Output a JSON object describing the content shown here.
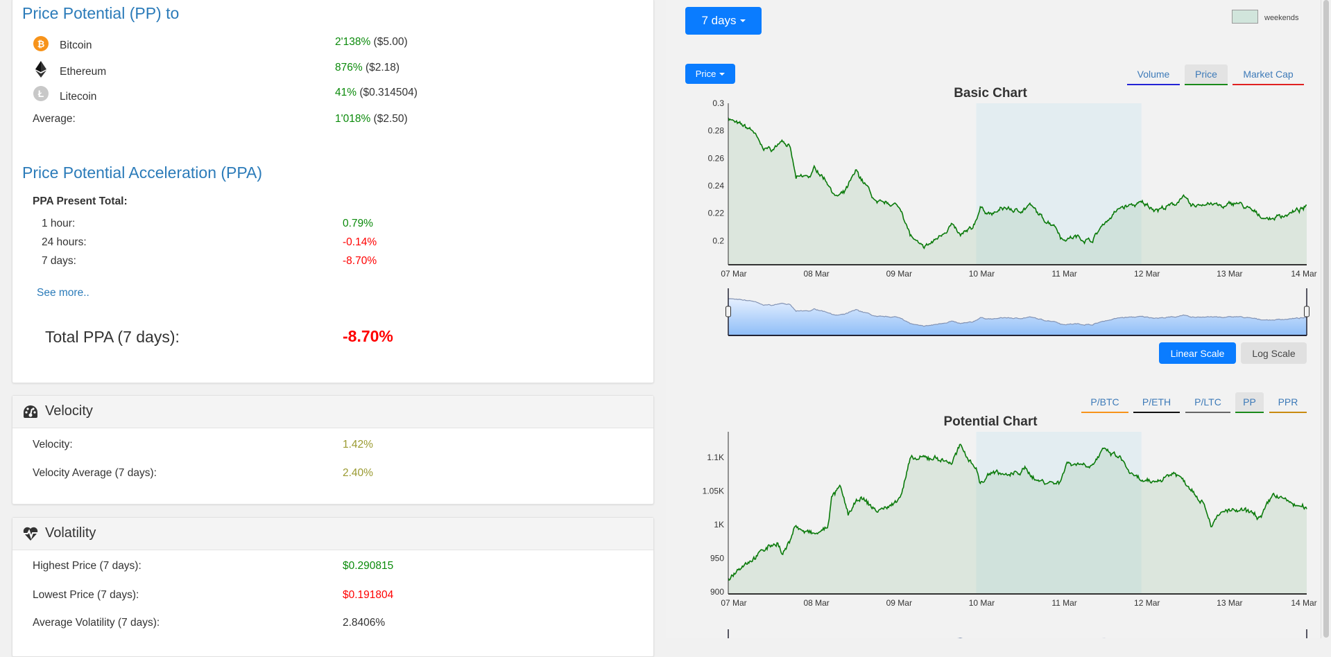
{
  "pp": {
    "title": "Price Potential (PP) to",
    "rows": [
      {
        "label": "Bitcoin",
        "pct": "2'138%",
        "price": "($5.00)",
        "icon": "bitcoin-icon"
      },
      {
        "label": "Ethereum",
        "pct": "876%",
        "price": "($2.18)",
        "icon": "ethereum-icon"
      },
      {
        "label": "Litecoin",
        "pct": "41%",
        "price": "($0.314504)",
        "icon": "litecoin-icon"
      }
    ],
    "average_label": "Average:",
    "average_pct": "1'018%",
    "average_price": "($2.50)"
  },
  "ppa": {
    "title": "Price Potential Acceleration (PPA)",
    "present_total_label": "PPA Present Total:",
    "rows": [
      {
        "label": "1 hour:",
        "value": "0.79%"
      },
      {
        "label": "24 hours:",
        "value": "-0.14%"
      },
      {
        "label": "7 days:",
        "value": "-8.70%"
      }
    ],
    "see_more": "See more..",
    "total_label": "Total PPA (7 days):",
    "total_value": "-8.70%"
  },
  "velocity": {
    "title": "Velocity",
    "rows": [
      {
        "label": "Velocity:",
        "value": "1.42%"
      },
      {
        "label": "Velocity Average (7 days):",
        "value": "2.40%"
      }
    ]
  },
  "volatility": {
    "title": "Volatility",
    "rows": [
      {
        "label": "Highest Price (7 days):",
        "value": "$0.290815"
      },
      {
        "label": "Lowest Price (7 days):",
        "value": "$0.191804"
      },
      {
        "label": "Average Volatility (7 days):",
        "value": "2.8406%"
      }
    ]
  },
  "controls": {
    "period": "7 days",
    "legend_weekends": "weekends",
    "metric": "Price",
    "basic_tabs": [
      {
        "label": "Volume",
        "color": "#2323d6",
        "active": false
      },
      {
        "label": "Price",
        "color": "#1a8a1a",
        "active": true
      },
      {
        "label": "Market Cap",
        "color": "#e02020",
        "active": false
      }
    ],
    "linear_scale": "Linear Scale",
    "log_scale": "Log Scale",
    "potential_tabs": [
      {
        "label": "P/BTC",
        "color": "#f7931a",
        "active": false
      },
      {
        "label": "P/ETH",
        "color": "#111111",
        "active": false
      },
      {
        "label": "P/LTC",
        "color": "#666666",
        "active": false
      },
      {
        "label": "PP",
        "color": "#1a8a1a",
        "active": true
      },
      {
        "label": "PPR",
        "color": "#c88a10",
        "active": false
      }
    ]
  },
  "colors": {
    "accent": "#0a7cff",
    "line": "#0a7a0a",
    "weekend": "#d1e5dc"
  },
  "chart_data": [
    {
      "type": "area",
      "title": "Basic Chart",
      "x_ticks": [
        "07 Mar",
        "08 Mar",
        "09 Mar",
        "10 Mar",
        "11 Mar",
        "12 Mar",
        "13 Mar",
        "14 Mar"
      ],
      "y_ticks": [
        0.2,
        0.22,
        0.24,
        0.26,
        0.28,
        0.3
      ],
      "ylim": [
        0.1825,
        0.3
      ],
      "xlim_days": [
        0,
        7
      ],
      "weekend_days": [
        3,
        5
      ],
      "series": [
        {
          "name": "Price",
          "x_days": [
            0,
            0.1,
            0.3,
            0.4,
            0.55,
            0.65,
            0.75,
            0.82,
            1.0,
            1.05,
            1.2,
            1.3,
            1.4,
            1.55,
            1.7,
            1.8,
            2.0,
            2.1,
            2.2,
            2.35,
            2.5,
            2.7,
            2.8,
            2.95,
            3.05,
            3.2,
            3.35,
            3.5,
            3.65,
            3.8,
            3.95,
            4.05,
            4.2,
            4.4,
            4.55,
            4.75,
            5.0,
            5.2,
            5.4,
            5.5,
            5.6,
            5.8,
            6.0,
            6.15,
            6.4,
            6.55,
            6.8,
            7.0
          ],
          "y": [
            0.29,
            0.285,
            0.28,
            0.268,
            0.266,
            0.275,
            0.267,
            0.245,
            0.247,
            0.253,
            0.243,
            0.232,
            0.234,
            0.25,
            0.237,
            0.226,
            0.227,
            0.222,
            0.204,
            0.194,
            0.2,
            0.212,
            0.203,
            0.208,
            0.224,
            0.219,
            0.224,
            0.221,
            0.226,
            0.216,
            0.212,
            0.201,
            0.203,
            0.2,
            0.213,
            0.224,
            0.227,
            0.223,
            0.226,
            0.233,
            0.224,
            0.228,
            0.224,
            0.228,
            0.219,
            0.216,
            0.22,
            0.224
          ]
        }
      ]
    },
    {
      "type": "area",
      "title": "Potential Chart",
      "x_ticks": [
        "07 Mar",
        "08 Mar",
        "09 Mar",
        "10 Mar",
        "11 Mar",
        "12 Mar",
        "13 Mar",
        "14 Mar"
      ],
      "y_ticks": [
        900,
        950,
        1000,
        1050,
        1100
      ],
      "y_tick_labels": [
        "900",
        "950",
        "1K",
        "1.05K",
        "1.1K"
      ],
      "ylim": [
        897,
        1138
      ],
      "xlim_days": [
        0,
        7
      ],
      "weekend_days": [
        3,
        5
      ],
      "series": [
        {
          "name": "PP",
          "x_days": [
            0,
            0.15,
            0.35,
            0.5,
            0.6,
            0.65,
            0.75,
            0.8,
            0.9,
            1.05,
            1.2,
            1.25,
            1.35,
            1.45,
            1.6,
            1.8,
            2.0,
            2.1,
            2.2,
            2.5,
            2.7,
            2.8,
            3.0,
            3.05,
            3.2,
            3.4,
            3.6,
            3.75,
            4.0,
            4.1,
            4.4,
            4.55,
            4.75,
            4.9,
            5.1,
            5.4,
            5.6,
            5.75,
            5.85,
            6.0,
            6.3,
            6.45,
            6.6,
            6.75,
            7.0
          ],
          "y": [
            920,
            940,
            955,
            968,
            975,
            955,
            975,
            1000,
            990,
            985,
            995,
            1040,
            1055,
            1015,
            1040,
            1020,
            1030,
            1050,
            1095,
            1100,
            1092,
            1115,
            1085,
            1060,
            1080,
            1072,
            1082,
            1065,
            1062,
            1092,
            1090,
            1110,
            1098,
            1070,
            1060,
            1078,
            1055,
            1035,
            1000,
            1020,
            1018,
            1010,
            1045,
            1035,
            1022
          ]
        }
      ]
    }
  ]
}
